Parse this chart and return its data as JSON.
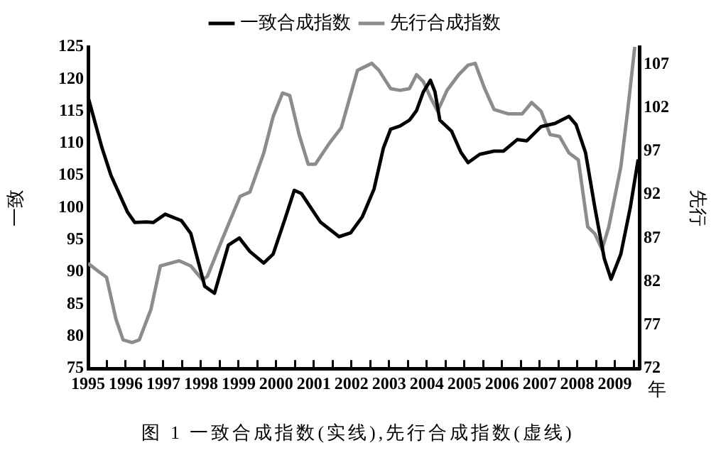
{
  "chart_data": {
    "type": "line",
    "xlabel": "年",
    "ylabel": "一致",
    "y2label": "先行",
    "annotations": [
      "图 1  一致合成指数(实线),先行合成指数(虚线)"
    ],
    "xlim": [
      1995,
      2009.65
    ],
    "xticks": [
      1995,
      {
        "value": 1995.5,
        "label": null
      },
      1996,
      {
        "value": 1996.5,
        "label": null
      },
      1997,
      {
        "value": 1997.5,
        "label": null
      },
      1998,
      {
        "value": 1998.5,
        "label": null
      },
      1999,
      {
        "value": 1999.5,
        "label": null
      },
      2000,
      {
        "value": 2000.5,
        "label": null
      },
      2001,
      {
        "value": 2001.5,
        "label": null
      },
      2002,
      {
        "value": 2002.5,
        "label": null
      },
      2003,
      {
        "value": 2003.5,
        "label": null
      },
      2004,
      {
        "value": 2004.5,
        "label": null
      },
      2005,
      {
        "value": 2005.5,
        "label": null
      },
      2006,
      {
        "value": 2006.5,
        "label": null
      },
      2007,
      {
        "value": 2007.5,
        "label": null
      },
      2008,
      {
        "value": 2008.5,
        "label": null
      },
      2009,
      {
        "value": 2009.5,
        "label": null
      }
    ],
    "ylim": [
      75,
      125
    ],
    "yticks": [
      75,
      80,
      85,
      90,
      95,
      100,
      105,
      110,
      115,
      120,
      125
    ],
    "y2lim": [
      72,
      109
    ],
    "y2ticks": [
      72,
      77,
      82,
      87,
      92,
      97,
      102,
      107
    ],
    "grid": false,
    "legend": "top",
    "marker": "none",
    "line_style": "solid",
    "series": [
      {
        "name": "一致合成指数",
        "color": "#000000",
        "x": [
          1995.0,
          1995.37,
          1995.61,
          1996.05,
          1996.24,
          1996.55,
          1996.73,
          1997.05,
          1997.48,
          1997.73,
          1998.1,
          1998.36,
          1998.73,
          1999.02,
          1999.3,
          1999.67,
          1999.92,
          2000.23,
          2000.48,
          2000.67,
          2001.17,
          2001.67,
          2001.98,
          2002.29,
          2002.6,
          2002.85,
          2003.04,
          2003.29,
          2003.54,
          2003.73,
          2003.91,
          2004.1,
          2004.22,
          2004.35,
          2004.66,
          2004.91,
          2005.1,
          2005.41,
          2005.79,
          2006.04,
          2006.41,
          2006.66,
          2007.04,
          2007.41,
          2007.78,
          2007.97,
          2008.22,
          2008.47,
          2008.72,
          2008.9,
          2009.16,
          2009.41,
          2009.62
        ],
        "values": [
          117.2,
          109.3,
          105,
          99.3,
          97.7,
          97.8,
          97.7,
          99,
          98,
          96,
          87.8,
          86.7,
          94.2,
          95.3,
          93.2,
          91.4,
          92.8,
          98.2,
          102.7,
          102.2,
          97.8,
          95.5,
          96.1,
          98.6,
          102.9,
          109.3,
          112.2,
          112.7,
          113.6,
          115.1,
          118,
          119.8,
          118,
          113.6,
          111.9,
          108.6,
          107,
          108.3,
          108.8,
          108.8,
          110.6,
          110.4,
          112.6,
          113.1,
          114.2,
          112.9,
          108.6,
          100,
          92.1,
          88.9,
          92.8,
          100,
          107.5
        ]
      },
      {
        "name": "先行合成指数",
        "color": "#8c8c8c",
        "axis": "y2",
        "x": [
          1995.0,
          1995.24,
          1995.49,
          1995.74,
          1995.93,
          1996.17,
          1996.36,
          1996.67,
          1996.92,
          1997.17,
          1997.42,
          1997.73,
          1998.04,
          1998.17,
          1998.55,
          1999.04,
          1999.3,
          1999.67,
          1999.92,
          2000.17,
          2000.36,
          2000.61,
          2000.85,
          2001.04,
          2001.41,
          2001.73,
          2002.16,
          2002.54,
          2002.73,
          2003.04,
          2003.29,
          2003.54,
          2003.73,
          2003.91,
          2004.1,
          2004.29,
          2004.54,
          2004.85,
          2005.1,
          2005.29,
          2005.54,
          2005.79,
          2006.16,
          2006.54,
          2006.79,
          2007.04,
          2007.28,
          2007.53,
          2007.78,
          2008.03,
          2008.28,
          2008.47,
          2008.66,
          2008.84,
          2009.16,
          2009.34,
          2009.53
        ],
        "values": [
          84.1,
          83.3,
          82.5,
          77.7,
          75.3,
          75,
          75.3,
          78.8,
          83.8,
          84.1,
          84.4,
          83.8,
          82.2,
          82.6,
          86.7,
          91.8,
          92.3,
          96.8,
          101,
          103.7,
          103.4,
          98.9,
          95.5,
          95.5,
          97.9,
          99.7,
          106.3,
          107.1,
          106.3,
          104.2,
          104,
          104.2,
          105.8,
          105,
          103.2,
          101.6,
          104,
          105.8,
          106.9,
          107.1,
          104.2,
          101.8,
          101.3,
          101.3,
          102.6,
          101.6,
          98.9,
          98.7,
          96.8,
          96,
          88.3,
          87.5,
          85.7,
          88.3,
          95.2,
          101.6,
          109
        ]
      }
    ]
  }
}
